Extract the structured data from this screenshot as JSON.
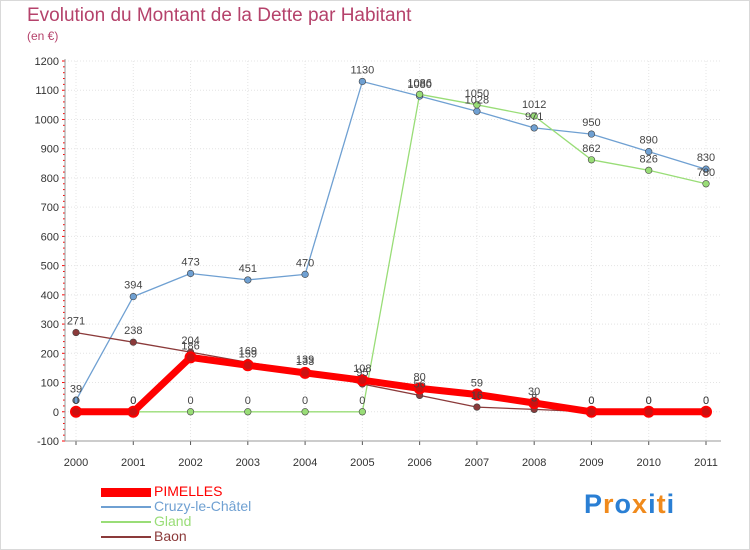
{
  "chart_data": {
    "type": "line",
    "title": "Evolution du Montant de la Dette par Habitant",
    "subtitle": "(en €)",
    "xlabel": "",
    "ylabel": "",
    "ylim": [
      -100,
      1200
    ],
    "yticks": [
      -100,
      0,
      100,
      200,
      300,
      400,
      500,
      600,
      700,
      800,
      900,
      1000,
      1100,
      1200
    ],
    "x": [
      "2000",
      "2001",
      "2002",
      "2003",
      "2004",
      "2005",
      "2006",
      "2007",
      "2008",
      "2009",
      "2010",
      "2011"
    ],
    "grid": true,
    "legend_position": "bottom-left",
    "series": [
      {
        "name": "PIMELLES",
        "color": "#ff0000",
        "values": [
          0,
          0,
          186,
          159,
          133,
          108,
          80,
          59,
          30,
          0,
          0,
          0
        ]
      },
      {
        "name": "Cruzy-le-Châtel",
        "color": "#6fa0d2",
        "values": [
          39,
          394,
          473,
          451,
          470,
          1130,
          1080,
          1028,
          971,
          950,
          890,
          830
        ]
      },
      {
        "name": "Gland",
        "color": "#99dd77",
        "values": [
          0,
          0,
          0,
          0,
          0,
          0,
          1086,
          1050,
          1012,
          862,
          826,
          780
        ]
      },
      {
        "name": "Baon",
        "color": "#8b3a3a",
        "values": [
          271,
          238,
          204,
          169,
          139,
          95,
          56,
          16,
          8,
          0,
          0,
          0
        ]
      }
    ]
  },
  "logo": {
    "text": "Proxiti"
  }
}
